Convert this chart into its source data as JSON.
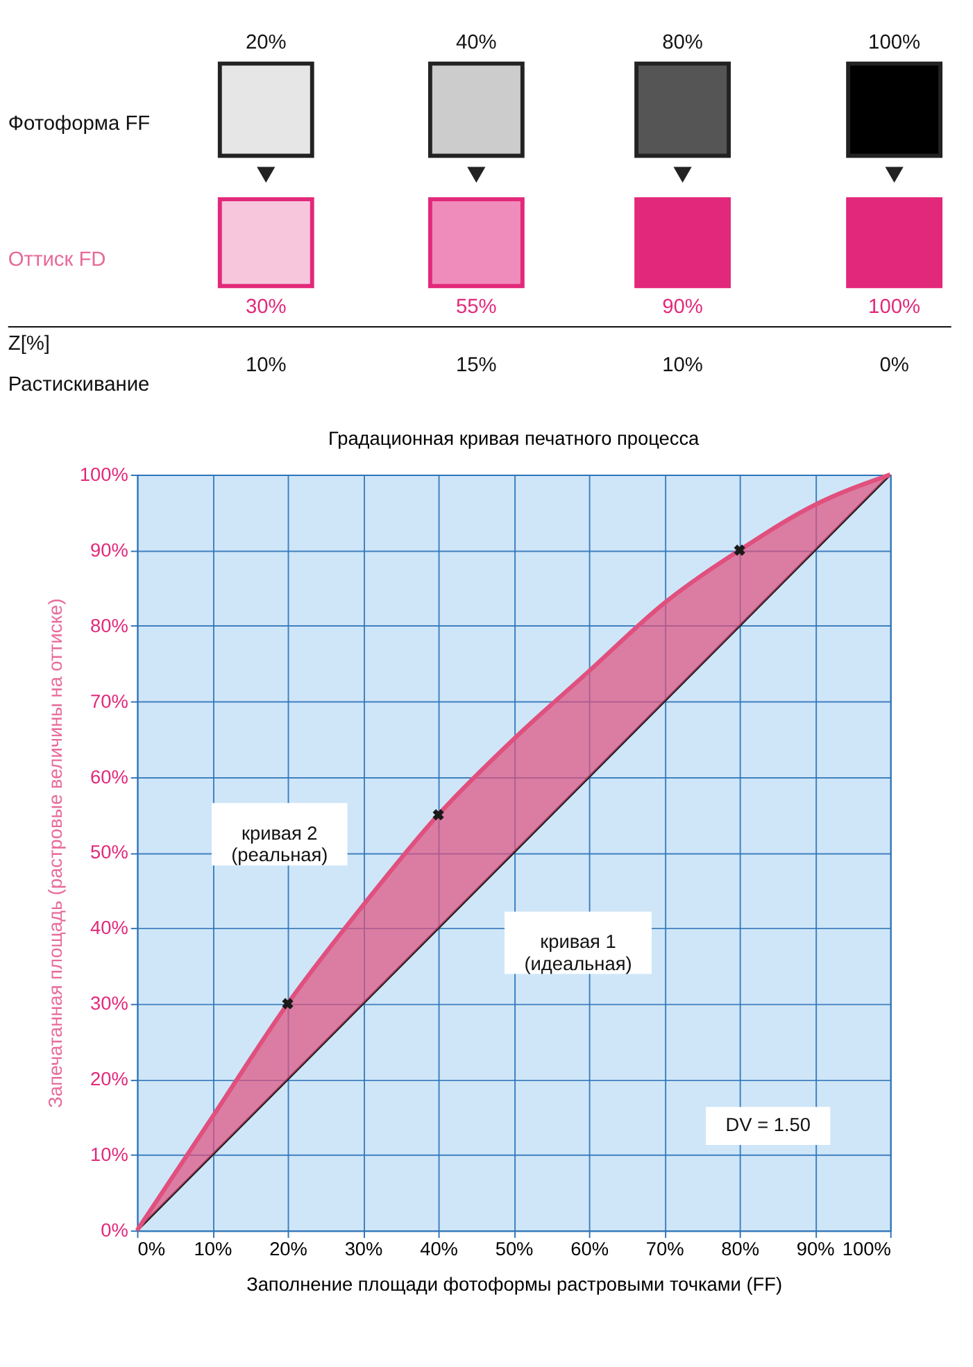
{
  "chart_data": [
    {
      "type": "other",
      "annotations": [
        "20%",
        "40%",
        "80%",
        "100%",
        "Фотоформа FF",
        "Оттиск FD",
        "30%",
        "55%",
        "90%",
        "100%",
        "Z[%]",
        "Растискивание",
        "10%",
        "15%",
        "10%",
        "0%"
      ]
    },
    {
      "type": "line",
      "title": "Градационная кривая печатного процесса",
      "xlabel": "Заполнение площади фотоформы растровыми точками (FF)",
      "ylabel": "Запечатанная площадь (растровые величины на оттиске)",
      "series": [
        {
          "type": "line",
          "color": "#1a1a1a",
          "x": [
            0,
            100
          ],
          "values": [
            0,
            100
          ]
        },
        {
          "type": "line",
          "color": "#e0507e",
          "x": [
            0,
            10,
            20,
            30,
            40,
            50,
            60,
            70,
            80,
            90,
            100
          ],
          "values": [
            0,
            15,
            30,
            43,
            55,
            65,
            74,
            83,
            90,
            96,
            100
          ],
          "lower": [
            0,
            10,
            20,
            30,
            40,
            50,
            60,
            70,
            80,
            90,
            100
          ],
          "upper": [
            0,
            15,
            30,
            43,
            55,
            65,
            74,
            83,
            90,
            96,
            100
          ]
        },
        {
          "type": "scatter",
          "color": "#1a1a1a",
          "marker": "cross",
          "x": [
            20,
            40,
            80
          ],
          "values": [
            30,
            55,
            90
          ]
        }
      ],
      "xlim": [
        0,
        100
      ],
      "ylim": [
        0,
        100
      ],
      "xticks": [
        {
          "value": 0,
          "label": "0%"
        },
        {
          "value": 10,
          "label": "10%"
        },
        {
          "value": 20,
          "label": "20%"
        },
        {
          "value": 30,
          "label": "30%"
        },
        {
          "value": 40,
          "label": "40%"
        },
        {
          "value": 50,
          "label": "50%"
        },
        {
          "value": 60,
          "label": "60%"
        },
        {
          "value": 70,
          "label": "70%"
        },
        {
          "value": 80,
          "label": "80%"
        },
        {
          "value": 90,
          "label": "90%"
        },
        {
          "value": 100,
          "label": "100%"
        }
      ],
      "yticks": [
        {
          "value": 0,
          "label": "0%"
        },
        {
          "value": 10,
          "label": "10%"
        },
        {
          "value": 20,
          "label": "20%"
        },
        {
          "value": 30,
          "label": "30%"
        },
        {
          "value": 40,
          "label": "40%"
        },
        {
          "value": 50,
          "label": "50%"
        },
        {
          "value": 60,
          "label": "60%"
        },
        {
          "value": 70,
          "label": "70%"
        },
        {
          "value": 80,
          "label": "80%"
        },
        {
          "value": 90,
          "label": "90%"
        },
        {
          "value": 100,
          "label": "100%"
        }
      ],
      "grid": true,
      "annotations": [
        "кривая 2\n(реальная)",
        "кривая 1\n(идеальная)",
        "DV = 1.50"
      ]
    }
  ]
}
